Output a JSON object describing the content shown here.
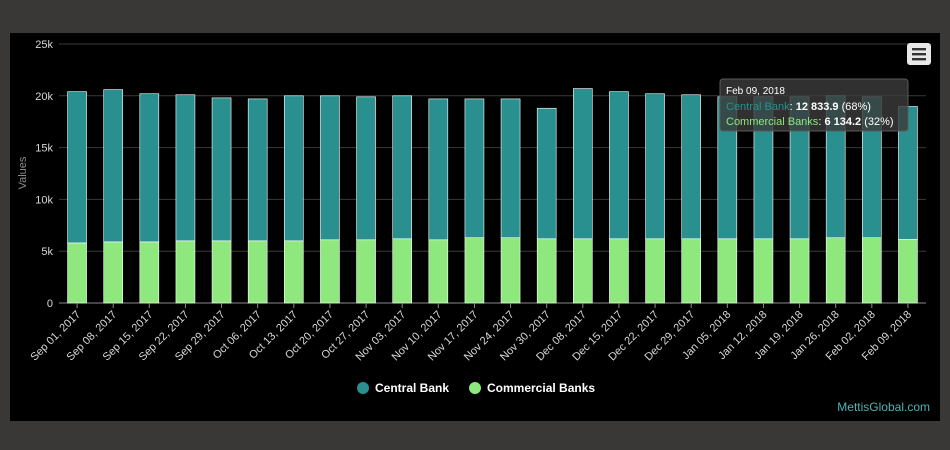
{
  "chart_data": {
    "type": "bar",
    "stacked": true,
    "categories": [
      "Sep 01, 2017",
      "Sep 08, 2017",
      "Sep 15, 2017",
      "Sep 22, 2017",
      "Sep 29, 2017",
      "Oct 06, 2017",
      "Oct 13, 2017",
      "Oct 20, 2017",
      "Oct 27, 2017",
      "Nov 03, 2017",
      "Nov 10, 2017",
      "Nov 17, 2017",
      "Nov 24, 2017",
      "Nov 30, 2017",
      "Dec 08, 2017",
      "Dec 15, 2017",
      "Dec 22, 2017",
      "Dec 29, 2017",
      "Jan 05, 2018",
      "Jan 12, 2018",
      "Jan 19, 2018",
      "Jan 26, 2018",
      "Feb 02, 2018",
      "Feb 09, 2018"
    ],
    "series": [
      {
        "name": "Central Bank",
        "color": "#2a8f8f",
        "values": [
          14600,
          14700,
          14300,
          14100,
          13800,
          13700,
          14000,
          13900,
          13800,
          13800,
          13600,
          13400,
          13400,
          12600,
          14500,
          14200,
          14000,
          13900,
          13700,
          13700,
          13700,
          13700,
          13600,
          12834
        ]
      },
      {
        "name": "Commercial Banks",
        "color": "#8ee87e",
        "values": [
          5800,
          5900,
          5900,
          6000,
          6000,
          6000,
          6000,
          6100,
          6100,
          6200,
          6100,
          6300,
          6300,
          6200,
          6200,
          6200,
          6200,
          6200,
          6200,
          6200,
          6200,
          6300,
          6300,
          6134
        ]
      }
    ],
    "ylabel": "Values",
    "yticks": [
      "0",
      "5k",
      "10k",
      "15k",
      "20k",
      "25k"
    ],
    "ylim": [
      0,
      25000
    ],
    "grid": true,
    "legend": "bottom-center",
    "tooltip": {
      "date": "Feb 09, 2018",
      "rows": [
        {
          "label": "Central Bank",
          "value": "12 833.9",
          "pct": "(68%)",
          "color": "#2a8f8f"
        },
        {
          "label": "Commercial Banks",
          "value": "6 134.2",
          "pct": "(32%)",
          "color": "#8ee87e"
        }
      ]
    }
  },
  "credit": "MettisGlobal.com",
  "menu_icon": "hamburger-menu-icon"
}
